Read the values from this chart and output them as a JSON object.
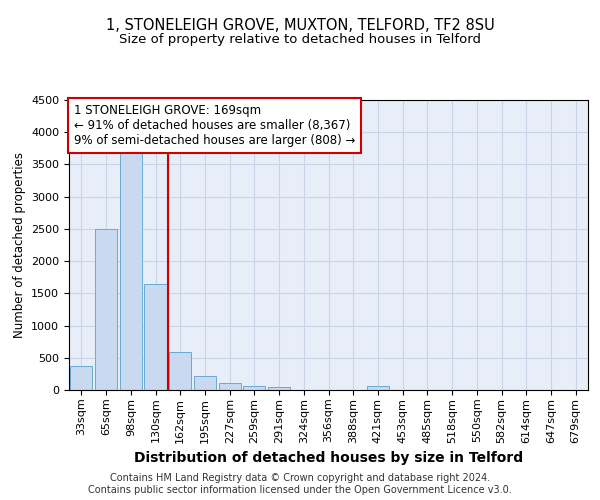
{
  "title1": "1, STONELEIGH GROVE, MUXTON, TELFORD, TF2 8SU",
  "title2": "Size of property relative to detached houses in Telford",
  "xlabel": "Distribution of detached houses by size in Telford",
  "ylabel": "Number of detached properties",
  "categories": [
    "33sqm",
    "65sqm",
    "98sqm",
    "130sqm",
    "162sqm",
    "195sqm",
    "227sqm",
    "259sqm",
    "291sqm",
    "324sqm",
    "356sqm",
    "388sqm",
    "421sqm",
    "453sqm",
    "485sqm",
    "518sqm",
    "550sqm",
    "582sqm",
    "614sqm",
    "647sqm",
    "679sqm"
  ],
  "values": [
    370,
    2500,
    3750,
    1650,
    590,
    225,
    105,
    60,
    40,
    5,
    0,
    0,
    55,
    0,
    0,
    0,
    0,
    0,
    0,
    0,
    0
  ],
  "bar_color": "#c8d9f0",
  "bar_edgecolor": "#6aaad4",
  "vline_x": 3.5,
  "vline_color": "#cc0000",
  "ylim": [
    0,
    4500
  ],
  "yticks": [
    0,
    500,
    1000,
    1500,
    2000,
    2500,
    3000,
    3500,
    4000,
    4500
  ],
  "ann_line1": "1 STONELEIGH GROVE: 169sqm",
  "ann_line2": "← 91% of detached houses are smaller (8,367)",
  "ann_line3": "9% of semi-detached houses are larger (808) →",
  "annotation_box_color": "#cc0000",
  "grid_color": "#c8d4e8",
  "bg_color": "#e8eef8",
  "footer": "Contains HM Land Registry data © Crown copyright and database right 2024.\nContains public sector information licensed under the Open Government Licence v3.0.",
  "title1_fontsize": 10.5,
  "title2_fontsize": 9.5,
  "xlabel_fontsize": 10,
  "ylabel_fontsize": 8.5,
  "tick_fontsize": 8,
  "annotation_fontsize": 8.5,
  "footer_fontsize": 7
}
